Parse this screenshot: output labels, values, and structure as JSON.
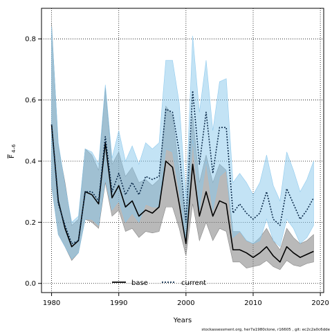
{
  "chart_data": {
    "type": "line",
    "xlabel": "Years",
    "ylabel_main": "F",
    "ylabel_sub": "4–6",
    "xlim": [
      1978.5,
      2020.5
    ],
    "ylim": [
      -0.03,
      0.9
    ],
    "x_ticks": [
      1980,
      1990,
      2000,
      2010,
      2020
    ],
    "y_ticks": [
      0.0,
      0.2,
      0.4,
      0.6,
      0.8
    ],
    "y_tick_labels": [
      "0.0",
      "0.2",
      "0.4",
      "0.6",
      "0.8"
    ],
    "grid": true,
    "legend_position": "bottom-center",
    "footnote": "stockassessment.org, her7a1980clone, r16605 , git: ec2c2a0c6dde",
    "years": [
      1980,
      1981,
      1982,
      1983,
      1984,
      1985,
      1986,
      1987,
      1988,
      1989,
      1990,
      1991,
      1992,
      1993,
      1994,
      1995,
      1996,
      1997,
      1998,
      1999,
      2000,
      2001,
      2002,
      2003,
      2004,
      2005,
      2006,
      2007,
      2008,
      2009,
      2010,
      2011,
      2012,
      2013,
      2014,
      2015,
      2016,
      2017,
      2018,
      2019
    ],
    "series": [
      {
        "name": "base",
        "color": "#000000",
        "band_color": "#808080",
        "line_style": "solid",
        "values": [
          0.52,
          0.27,
          0.18,
          0.12,
          0.14,
          0.3,
          0.29,
          0.26,
          0.46,
          0.28,
          0.32,
          0.25,
          0.27,
          0.22,
          0.24,
          0.23,
          0.25,
          0.4,
          0.38,
          0.26,
          0.13,
          0.39,
          0.22,
          0.3,
          0.22,
          0.27,
          0.26,
          0.11,
          0.11,
          0.1,
          0.085,
          0.1,
          0.12,
          0.09,
          0.07,
          0.12,
          0.1,
          0.085,
          0.095,
          0.105
        ],
        "lower": [
          0.32,
          0.16,
          0.12,
          0.075,
          0.1,
          0.21,
          0.2,
          0.18,
          0.33,
          0.22,
          0.24,
          0.17,
          0.18,
          0.15,
          0.17,
          0.165,
          0.17,
          0.25,
          0.25,
          0.18,
          0.09,
          0.26,
          0.14,
          0.2,
          0.14,
          0.18,
          0.17,
          0.07,
          0.07,
          0.05,
          0.055,
          0.06,
          0.075,
          0.055,
          0.045,
          0.075,
          0.06,
          0.055,
          0.065,
          0.07
        ],
        "upper": [
          0.85,
          0.45,
          0.33,
          0.19,
          0.21,
          0.44,
          0.42,
          0.37,
          0.64,
          0.39,
          0.43,
          0.35,
          0.38,
          0.33,
          0.34,
          0.32,
          0.34,
          0.58,
          0.55,
          0.37,
          0.2,
          0.55,
          0.33,
          0.42,
          0.33,
          0.39,
          0.37,
          0.17,
          0.17,
          0.14,
          0.13,
          0.15,
          0.18,
          0.14,
          0.11,
          0.18,
          0.15,
          0.13,
          0.14,
          0.16
        ]
      },
      {
        "name": "current",
        "color": "#0b2a4a",
        "band_color": "#87c7ec",
        "line_style": "dotted",
        "values": [
          0.52,
          0.26,
          0.19,
          0.13,
          0.14,
          0.3,
          0.3,
          0.27,
          0.48,
          0.3,
          0.36,
          0.29,
          0.33,
          0.29,
          0.35,
          0.34,
          0.35,
          0.57,
          0.56,
          0.43,
          0.2,
          0.63,
          0.39,
          0.56,
          0.36,
          0.51,
          0.51,
          0.23,
          0.26,
          0.23,
          0.21,
          0.23,
          0.3,
          0.21,
          0.19,
          0.31,
          0.26,
          0.21,
          0.24,
          0.28
        ],
        "lower": [
          0.32,
          0.16,
          0.12,
          0.08,
          0.1,
          0.21,
          0.21,
          0.19,
          0.34,
          0.24,
          0.27,
          0.2,
          0.23,
          0.2,
          0.26,
          0.25,
          0.25,
          0.44,
          0.43,
          0.3,
          0.14,
          0.47,
          0.24,
          0.4,
          0.24,
          0.35,
          0.37,
          0.15,
          0.17,
          0.14,
          0.13,
          0.14,
          0.21,
          0.14,
          0.12,
          0.21,
          0.18,
          0.13,
          0.15,
          0.19
        ],
        "upper": [
          0.84,
          0.46,
          0.32,
          0.2,
          0.22,
          0.44,
          0.43,
          0.39,
          0.65,
          0.41,
          0.5,
          0.4,
          0.45,
          0.39,
          0.46,
          0.44,
          0.46,
          0.73,
          0.73,
          0.59,
          0.28,
          0.81,
          0.56,
          0.73,
          0.5,
          0.66,
          0.67,
          0.33,
          0.36,
          0.33,
          0.29,
          0.33,
          0.42,
          0.32,
          0.27,
          0.43,
          0.37,
          0.3,
          0.34,
          0.4
        ]
      }
    ]
  }
}
